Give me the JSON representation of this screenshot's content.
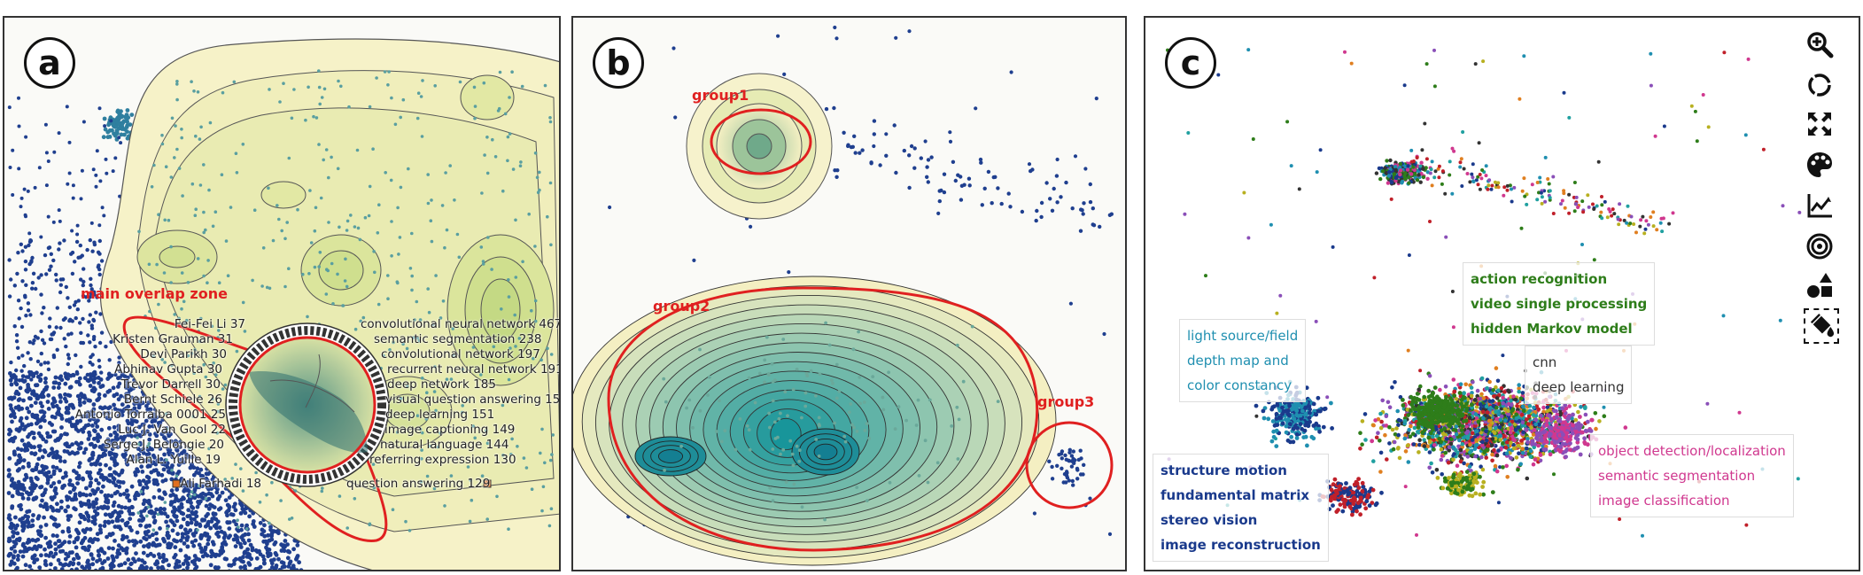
{
  "panels": {
    "a": {
      "badge": "a",
      "overlap_label": "main overlap zone",
      "authors": [
        "Fei-Fei Li 37",
        "Kristen Grauman 31",
        "Devi Parikh 30",
        "Abhinav Gupta 30",
        "Trevor Darrell 30",
        "Bernt Schiele 26",
        "Antonio Torralba 0001 25",
        "Luc J. Van Gool 22",
        "Serge J. Belongie 20",
        "Alan L. Yuille 19",
        "Ali Farhadi 18"
      ],
      "keywords": [
        "convolutional neural network 467",
        "semantic segmentation 238",
        "convolutional network 197",
        "recurrent neural network 191",
        "deep network 185",
        "visual question answering 157",
        "deep learning 151",
        "image captioning 149",
        "natural language 144",
        "referring expression 130",
        "question answering 129"
      ]
    },
    "b": {
      "badge": "b",
      "groups": [
        "group1",
        "group2",
        "group3"
      ]
    },
    "c": {
      "badge": "c",
      "topics": {
        "action": [
          "action recognition",
          "video single processing",
          "hidden Markov model"
        ],
        "light": [
          "light source/field",
          "depth map and",
          "color constancy"
        ],
        "cnn": [
          "cnn",
          "deep learning"
        ],
        "structure": [
          "structure motion",
          "fundamental matrix",
          "stereo vision",
          "image reconstruction"
        ],
        "object": [
          "object detection/localization",
          "semantic segmentation",
          "image classification"
        ]
      },
      "topic_colors": {
        "action": "#2e7d1a",
        "light": "#1f8fb0",
        "cnn": "#333333",
        "structure": "#1a3a8c",
        "object": "#d0388f"
      },
      "toolbar": [
        {
          "icon": "zoom-in-icon"
        },
        {
          "icon": "lasso-icon"
        },
        {
          "icon": "fullscreen-icon"
        },
        {
          "icon": "palette-icon"
        },
        {
          "icon": "line-chart-icon"
        },
        {
          "icon": "target-icon"
        },
        {
          "icon": "shapes-icon"
        },
        {
          "icon": "fill-bucket-icon"
        }
      ]
    }
  },
  "colors": {
    "dot_blue": "#1f3f8f",
    "dot_teal": "#2f7f9f",
    "highlight_red": "#e02020",
    "contour_light": "#f6f2c8",
    "contour_mid": "#d7e3a2",
    "contour_dark": "#2f8f8f"
  }
}
